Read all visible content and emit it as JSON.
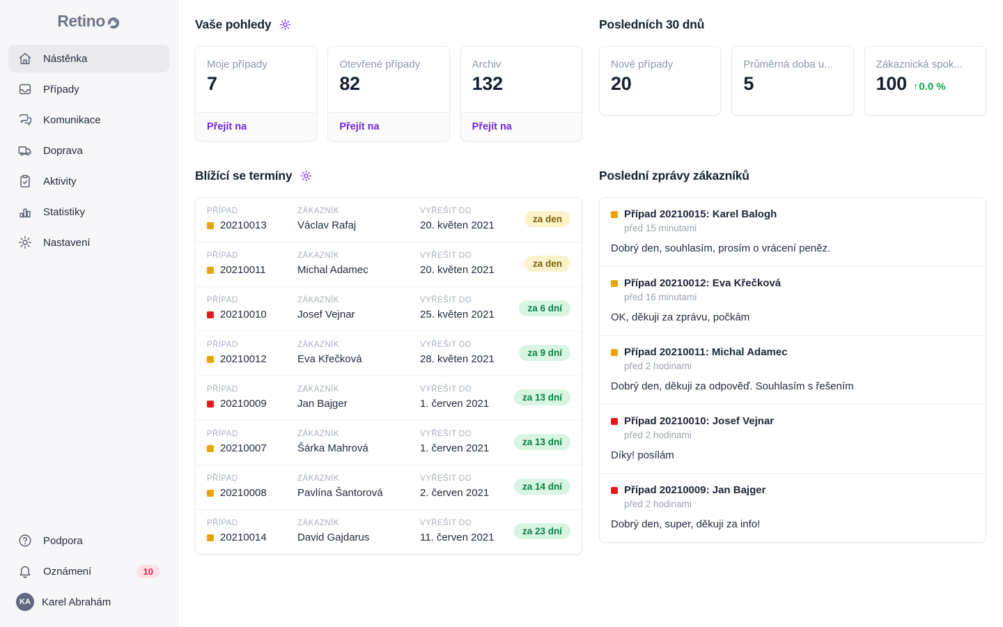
{
  "app": {
    "logo_text": "Retino"
  },
  "colors": {
    "accent_purple": "#6d28d9",
    "gear_purple": "#7527e8",
    "amber": "#e7a407",
    "red": "#e11b1b",
    "green_delta": "#16a34a",
    "yellow_badge_bg": "#fcf3cb",
    "yellow_badge_text": "#7c6104",
    "green_badge_bg": "#d8f5e4",
    "green_badge_text": "#0b7f43",
    "notification_badge_bg": "#fbdfe5",
    "notification_badge_text": "#dc2650"
  },
  "sidebar": {
    "items": [
      {
        "icon": "home-icon",
        "label": "Nástěnka",
        "active": true
      },
      {
        "icon": "inbox-icon",
        "label": "Případy",
        "active": false
      },
      {
        "icon": "chat-icon",
        "label": "Komunikace",
        "active": false
      },
      {
        "icon": "truck-icon",
        "label": "Doprava",
        "active": false
      },
      {
        "icon": "clipboard-check-icon",
        "label": "Aktivity",
        "active": false
      },
      {
        "icon": "bar-chart-icon",
        "label": "Statistiky",
        "active": false
      },
      {
        "icon": "gear-icon",
        "label": "Nastavení",
        "active": false
      }
    ],
    "footer_items": [
      {
        "icon": "help-icon",
        "label": "Podpora"
      },
      {
        "icon": "bell-icon",
        "label": "Oznámení",
        "badge": "10"
      }
    ],
    "user": {
      "initials": "KA",
      "name": "Karel Abrahám"
    }
  },
  "views_section": {
    "title": "Vaše pohledy",
    "cards": [
      {
        "label": "Moje případy",
        "value": "7",
        "link": "Přejít na"
      },
      {
        "label": "Otevřené případy",
        "value": "82",
        "link": "Přejít na"
      },
      {
        "label": "Archiv",
        "value": "132",
        "link": "Přejít na"
      }
    ]
  },
  "stats_section": {
    "title": "Posledních 30 dnů",
    "cards": [
      {
        "label": "Nové případy",
        "value": "20"
      },
      {
        "label": "Průměrná doba u...",
        "value": "5"
      },
      {
        "label": "Zákaznická spok...",
        "value": "100",
        "delta_arrow": "↑",
        "delta": "0.0 %"
      }
    ]
  },
  "deadlines_section": {
    "title": "Blížící se termíny",
    "labels": {
      "case": "PŘÍPAD",
      "customer": "ZÁKAZNÍK",
      "due": "VYŘEŠIT DO"
    },
    "rows": [
      {
        "case": "20210013",
        "severity": "amber",
        "customer": "Václav Rafaj",
        "due": "20. květen 2021",
        "badge": "za den",
        "badge_type": "yellow"
      },
      {
        "case": "20210011",
        "severity": "amber",
        "customer": "Michal Adamec",
        "due": "20. květen 2021",
        "badge": "za den",
        "badge_type": "yellow"
      },
      {
        "case": "20210010",
        "severity": "red",
        "customer": "Josef Vejnar",
        "due": "25. květen 2021",
        "badge": "za 6 dní",
        "badge_type": "green"
      },
      {
        "case": "20210012",
        "severity": "amber",
        "customer": "Eva Křečková",
        "due": "28. květen 2021",
        "badge": "za 9 dní",
        "badge_type": "green"
      },
      {
        "case": "20210009",
        "severity": "red",
        "customer": "Jan Bajger",
        "due": "1. červen 2021",
        "badge": "za 13 dní",
        "badge_type": "green"
      },
      {
        "case": "20210007",
        "severity": "amber",
        "customer": "Šárka Mahrová",
        "due": "1. červen 2021",
        "badge": "za 13 dní",
        "badge_type": "green"
      },
      {
        "case": "20210008",
        "severity": "amber",
        "customer": "Pavlína Šantorová",
        "due": "2. červen 2021",
        "badge": "za 14 dní",
        "badge_type": "green"
      },
      {
        "case": "20210014",
        "severity": "amber",
        "customer": "David Gajdarus",
        "due": "11. červen 2021",
        "badge": "za 23 dní",
        "badge_type": "green"
      }
    ]
  },
  "messages_section": {
    "title": "Poslední zprávy zákazníků",
    "items": [
      {
        "severity": "amber",
        "title": "Případ 20210015: Karel Balogh",
        "time": "před 15 minutami",
        "text": "Dobrý den, souhlasím, prosím o vrácení peněz."
      },
      {
        "severity": "amber",
        "title": "Případ 20210012: Eva Křečková",
        "time": "před 16 minutami",
        "text": "OK, děkuji za zprávu, počkám"
      },
      {
        "severity": "amber",
        "title": "Případ 20210011: Michal Adamec",
        "time": "před 2 hodinami",
        "text": "Dobrý den, děkuji za odpověď. Souhlasím s řešením"
      },
      {
        "severity": "red",
        "title": "Případ 20210010: Josef Vejnar",
        "time": "před 2 hodinami",
        "text": "Díky! posílám"
      },
      {
        "severity": "red",
        "title": "Případ 20210009: Jan Bajger",
        "time": "před 2 hodinami",
        "text": "Dobrý den, super, děkuji za info!"
      }
    ]
  }
}
